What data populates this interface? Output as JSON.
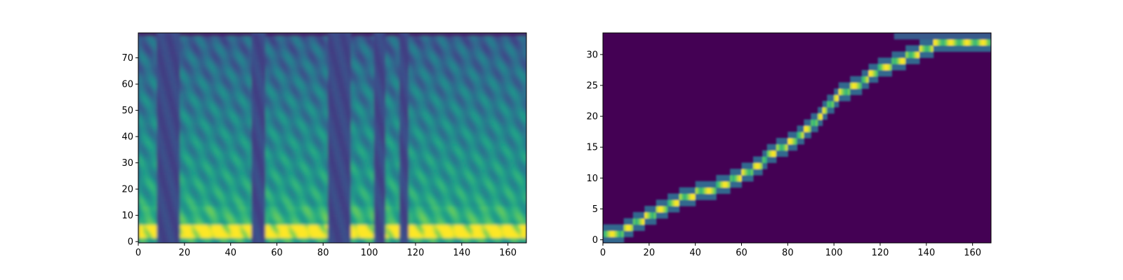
{
  "chart_data": [
    {
      "type": "heatmap",
      "title": "",
      "xlabel": "",
      "ylabel": "",
      "xlim": [
        0,
        168
      ],
      "ylim": [
        -0.5,
        79.5
      ],
      "xticks": [
        0,
        20,
        40,
        60,
        80,
        100,
        120,
        140,
        160
      ],
      "yticks": [
        0,
        10,
        20,
        30,
        40,
        50,
        60,
        70
      ],
      "colormap": "viridis",
      "content": "mel spectrogram",
      "loud_frame_ranges": [
        [
          0,
          7
        ],
        [
          18,
          48
        ],
        [
          55,
          81
        ],
        [
          92,
          101
        ],
        [
          107,
          112
        ],
        [
          117,
          168
        ]
      ],
      "quiet_frame_ranges": [
        [
          8,
          16
        ],
        [
          49,
          54
        ],
        [
          82,
          91
        ],
        [
          102,
          106
        ],
        [
          113,
          116
        ]
      ],
      "bright_band_bins": [
        2,
        6
      ]
    },
    {
      "type": "heatmap",
      "title": "",
      "xlabel": "",
      "ylabel": "",
      "xlim": [
        0,
        168
      ],
      "ylim": [
        -0.5,
        33.5
      ],
      "xticks": [
        0,
        20,
        40,
        60,
        80,
        100,
        120,
        140,
        160
      ],
      "yticks": [
        0,
        5,
        10,
        15,
        20,
        25,
        30
      ],
      "colormap": "viridis",
      "content": "attention alignment",
      "alignment_path": [
        [
          0,
          1
        ],
        [
          7,
          1
        ],
        [
          10,
          2
        ],
        [
          15,
          3
        ],
        [
          20,
          4
        ],
        [
          25,
          5
        ],
        [
          30,
          6
        ],
        [
          35,
          7
        ],
        [
          45,
          8
        ],
        [
          52,
          9
        ],
        [
          57,
          10
        ],
        [
          62,
          11
        ],
        [
          67,
          12
        ],
        [
          72,
          14
        ],
        [
          78,
          15
        ],
        [
          82,
          16
        ],
        [
          88,
          18
        ],
        [
          94,
          20
        ],
        [
          98,
          22
        ],
        [
          103,
          24
        ],
        [
          110,
          25
        ],
        [
          116,
          27
        ],
        [
          122,
          28
        ],
        [
          128,
          29
        ],
        [
          134,
          30
        ],
        [
          140,
          31
        ],
        [
          146,
          32
        ],
        [
          168,
          32
        ]
      ]
    }
  ]
}
